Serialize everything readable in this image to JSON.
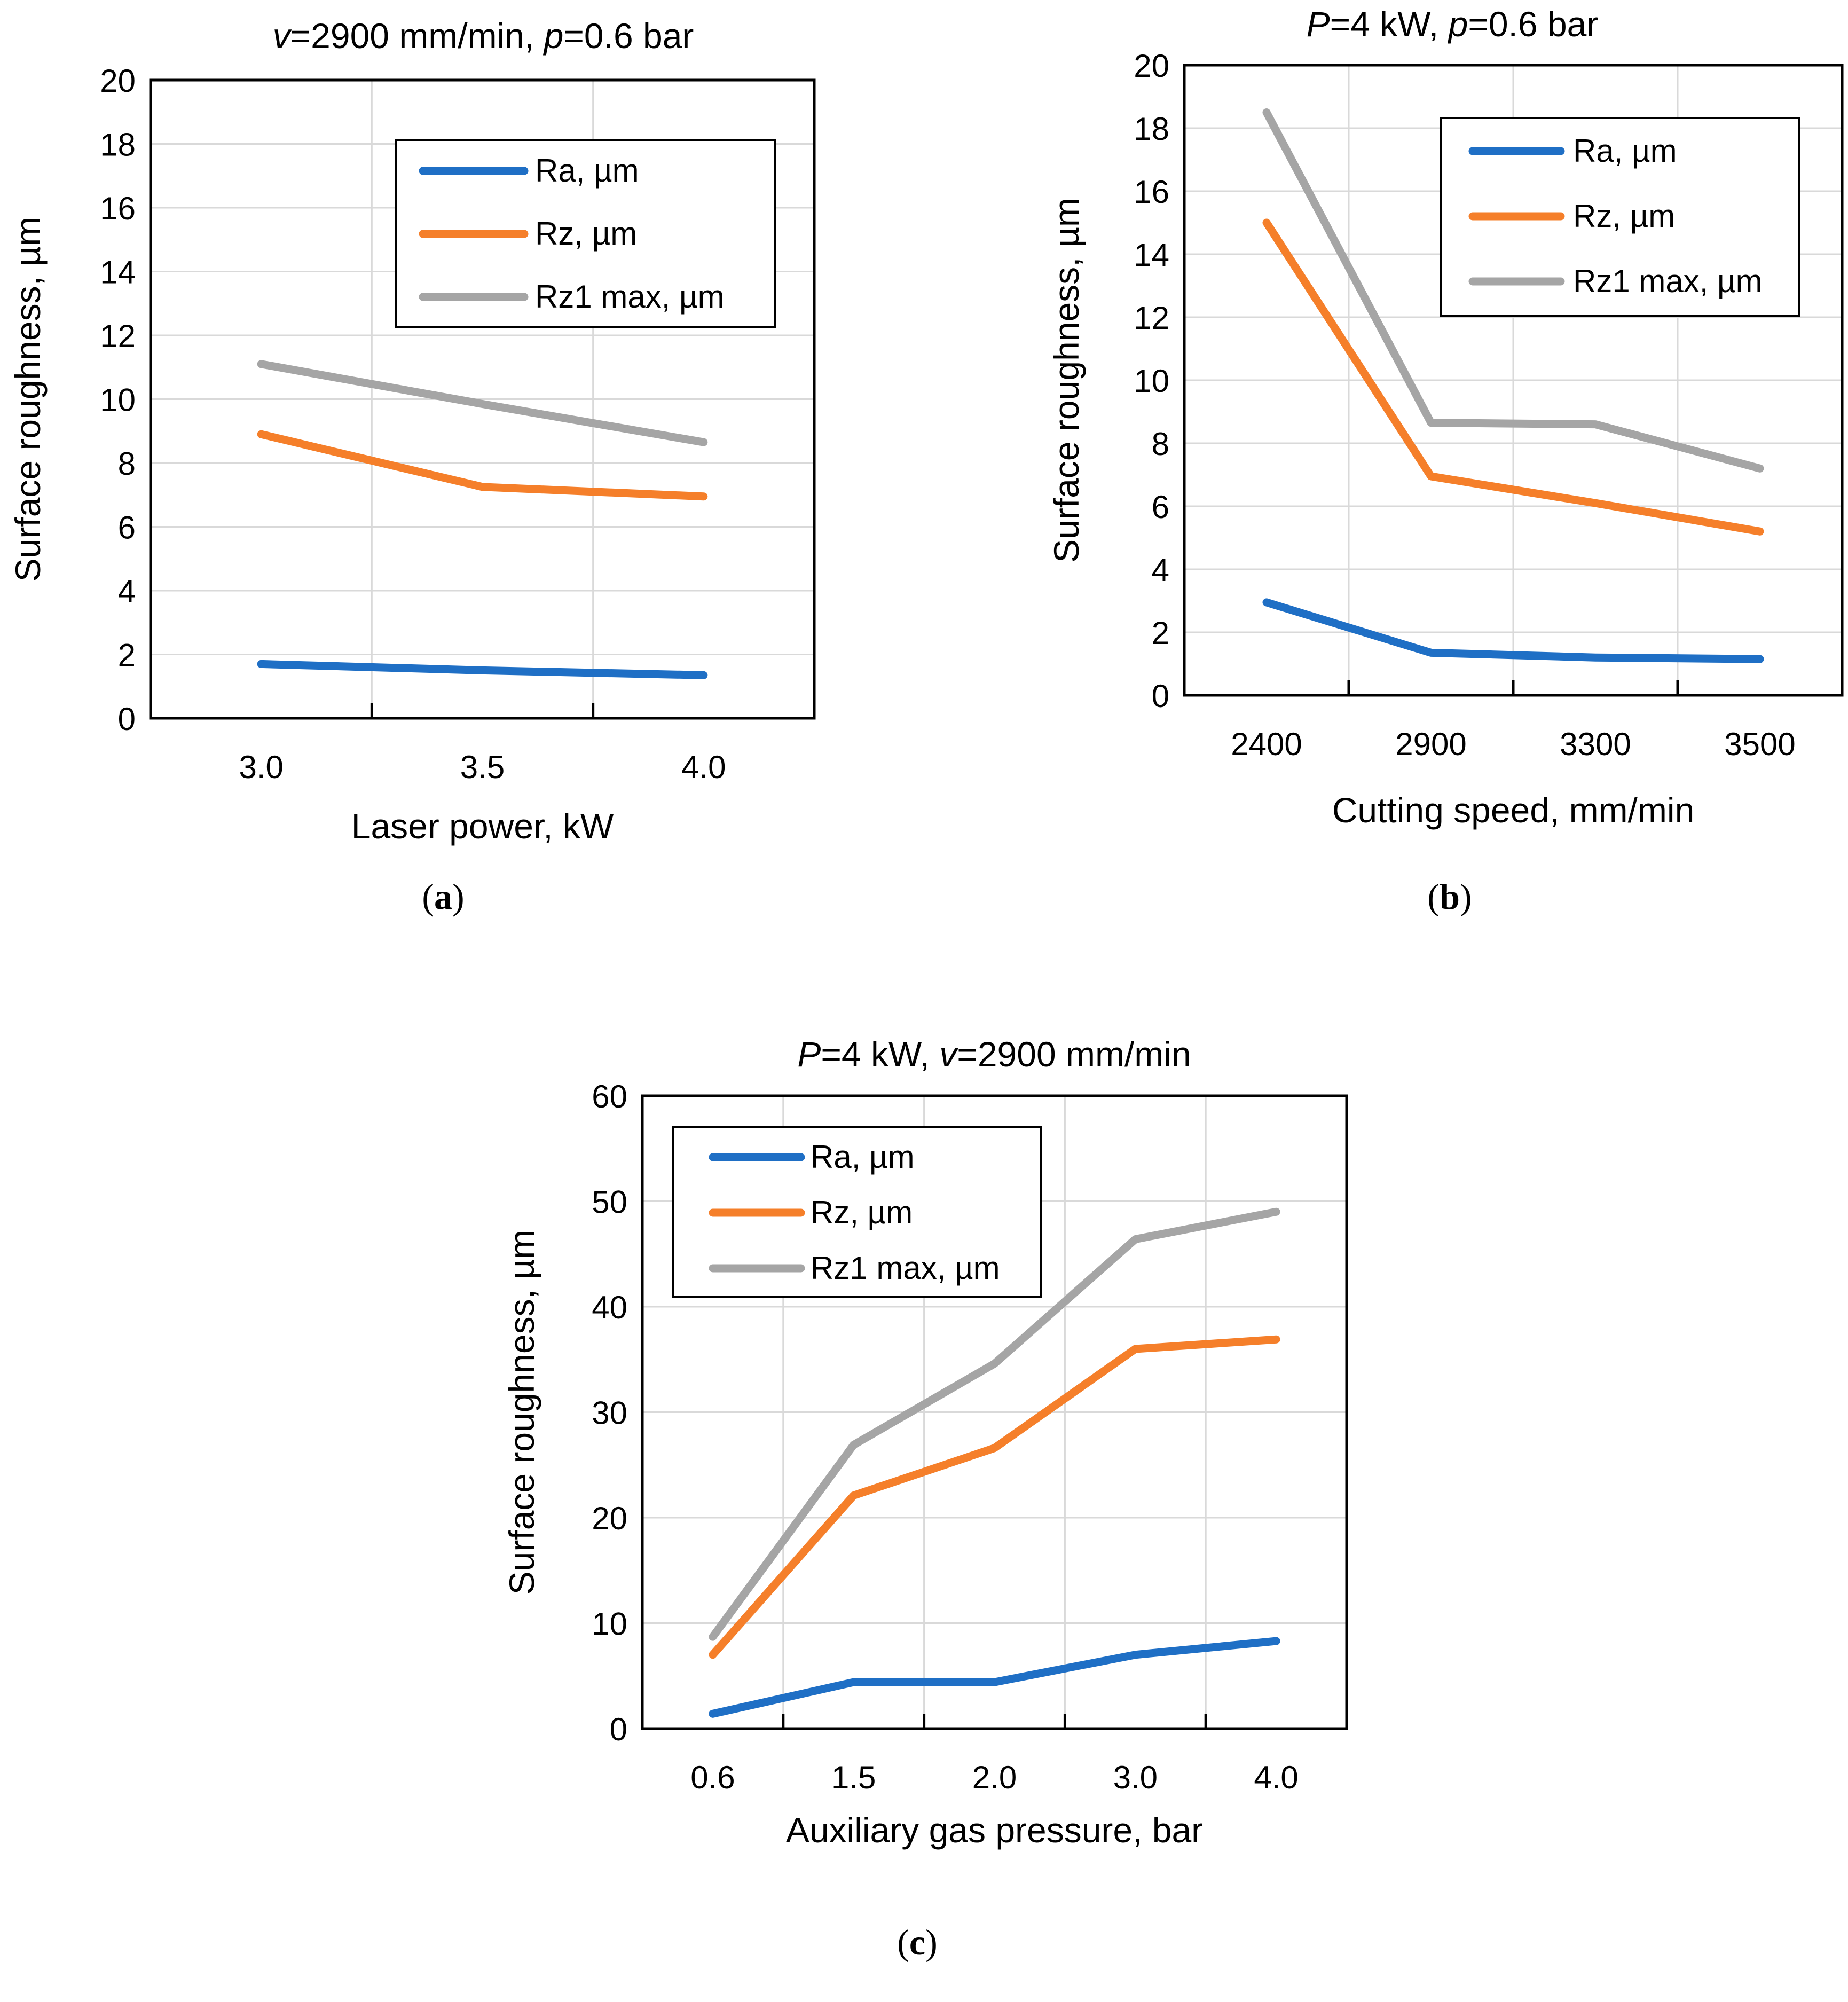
{
  "chart_data": [
    {
      "type": "line",
      "panel": "a",
      "title_segments": [
        {
          "text": "v",
          "italic": true
        },
        {
          "text": "=2900 mm/min, ",
          "italic": false
        },
        {
          "text": "p",
          "italic": true
        },
        {
          "text": "=0.6 bar",
          "italic": false
        }
      ],
      "xlabel": "Laser power, kW",
      "ylabel": "Surface roughness, µm",
      "categories": [
        "3.0",
        "3.5",
        "4.0"
      ],
      "ylim": [
        0,
        20
      ],
      "ytick_step": 2,
      "series": [
        {
          "name": "Ra, µm",
          "values": [
            1.7,
            1.5,
            1.35
          ]
        },
        {
          "name": "Rz, µm",
          "values": [
            8.9,
            7.25,
            6.95
          ]
        },
        {
          "name": "Rz1 max, µm",
          "values": [
            11.1,
            9.85,
            8.65
          ]
        }
      ],
      "legend": "top-right",
      "grid": true
    },
    {
      "type": "line",
      "panel": "b",
      "title_segments": [
        {
          "text": "P",
          "italic": true
        },
        {
          "text": "=4 kW, ",
          "italic": false
        },
        {
          "text": "p",
          "italic": true
        },
        {
          "text": "=0.6 bar",
          "italic": false
        }
      ],
      "xlabel": "Cutting speed, mm/min",
      "ylabel": "Surface roughness, µm",
      "categories": [
        "2400",
        "2900",
        "3300",
        "3500"
      ],
      "ylim": [
        0,
        20
      ],
      "ytick_step": 2,
      "series": [
        {
          "name": "Ra, µm",
          "values": [
            2.95,
            1.35,
            1.2,
            1.15
          ]
        },
        {
          "name": "Rz, µm",
          "values": [
            15.0,
            6.95,
            6.1,
            5.2
          ]
        },
        {
          "name": "Rz1 max, µm",
          "values": [
            18.5,
            8.65,
            8.6,
            7.2
          ]
        }
      ],
      "legend": "top-right",
      "grid": true
    },
    {
      "type": "line",
      "panel": "c",
      "title_segments": [
        {
          "text": "P",
          "italic": true
        },
        {
          "text": "=4 kW, ",
          "italic": false
        },
        {
          "text": "v",
          "italic": true
        },
        {
          "text": "=2900 mm/min",
          "italic": false
        }
      ],
      "xlabel": "Auxiliary gas pressure, bar",
      "ylabel": "Surface roughness, µm",
      "categories": [
        "0.6",
        "1.5",
        "2.0",
        "3.0",
        "4.0"
      ],
      "ylim": [
        0,
        60
      ],
      "ytick_step": 10,
      "series": [
        {
          "name": "Ra, µm",
          "values": [
            1.4,
            4.4,
            4.4,
            7.0,
            8.3
          ]
        },
        {
          "name": "Rz, µm",
          "values": [
            7.0,
            22.1,
            26.6,
            36.0,
            36.9
          ]
        },
        {
          "name": "Rz1 max, µm",
          "values": [
            8.7,
            26.9,
            34.6,
            46.4,
            49.0
          ]
        }
      ],
      "legend": "top-left",
      "grid": true
    }
  ],
  "colors": {
    "Ra": "#1f6fc5",
    "Rz": "#f57f2a",
    "Rz1max": "#a5a5a5",
    "grid": "#d9d9d9",
    "frame": "#000000"
  },
  "panel_labels": [
    "a",
    "b",
    "c"
  ]
}
